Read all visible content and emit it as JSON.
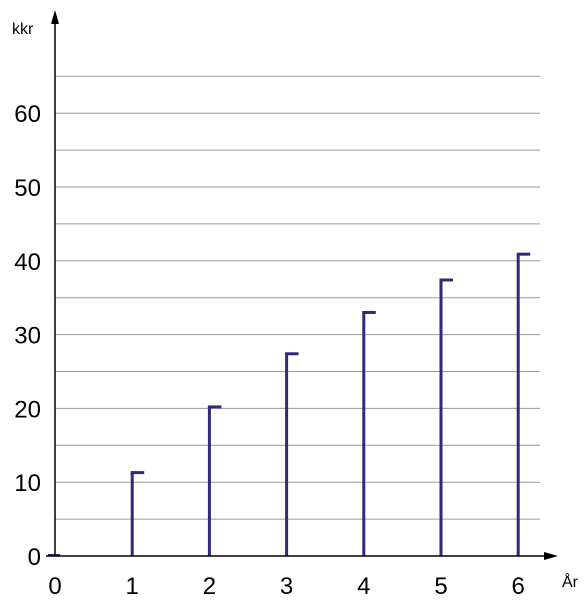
{
  "chart_data": {
    "type": "bar",
    "title": "",
    "xlabel": "År",
    "ylabel": "kkr",
    "categories": [
      "0",
      "1",
      "2",
      "3",
      "4",
      "5",
      "6"
    ],
    "values": [
      0,
      11.3,
      20.2,
      27.4,
      33.0,
      37.4,
      40.9
    ],
    "x_ticks": [
      "0",
      "1",
      "2",
      "3",
      "4",
      "5",
      "6"
    ],
    "y_ticks": [
      "0",
      "10",
      "20",
      "30",
      "40",
      "50",
      "60"
    ],
    "ylim": [
      0,
      65
    ],
    "grid": true,
    "grid_minor_step": 5,
    "bar_color": "#2e2a7a",
    "grid_color": "#9a9a9a"
  }
}
